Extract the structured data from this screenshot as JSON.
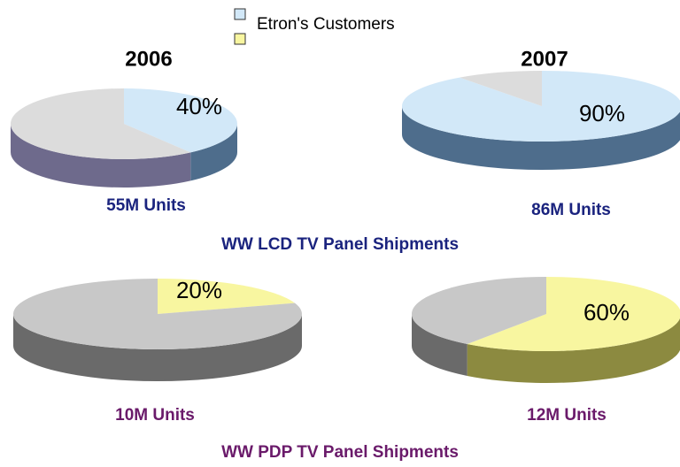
{
  "legend": {
    "name": "Etron's Customers",
    "colors": [
      "#d2e8f8",
      "#f8f6a0"
    ]
  },
  "section_titles": [
    "WW LCD TV Panel Shipments",
    "WW PDP TV Panel Shipments"
  ],
  "chart_data": [
    {
      "type": "pie",
      "title": "2006",
      "caption": "55M Units",
      "values": [
        40,
        60
      ],
      "value_labels": [
        "40%",
        null
      ],
      "colors": [
        "#d2e8f8",
        "#dcdcdc"
      ],
      "side_colors": [
        "#4e6d8c",
        "#6e6a8c"
      ]
    },
    {
      "type": "pie",
      "title": "2007",
      "caption": "86M Units",
      "values": [
        90,
        10
      ],
      "value_labels": [
        "90%",
        null
      ],
      "colors": [
        "#d2e8f8",
        "#dcdcdc"
      ],
      "side_colors": [
        "#4e6d8c",
        "#6e6a8c"
      ]
    },
    {
      "type": "pie",
      "caption": "10M Units",
      "values": [
        20,
        80
      ],
      "value_labels": [
        "20%",
        null
      ],
      "colors": [
        "#f8f6a0",
        "#c8c8c8"
      ],
      "side_colors": [
        "#8c8a40",
        "#6a6a6a"
      ]
    },
    {
      "type": "pie",
      "caption": "12M Units",
      "values": [
        60,
        40
      ],
      "value_labels": [
        "60%",
        null
      ],
      "colors": [
        "#f8f6a0",
        "#c8c8c8"
      ],
      "side_colors": [
        "#8c8a40",
        "#6a6a6a"
      ]
    }
  ]
}
